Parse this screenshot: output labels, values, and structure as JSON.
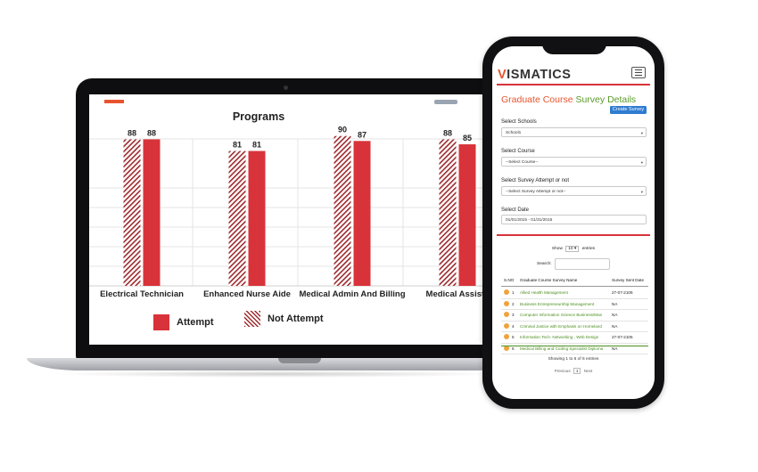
{
  "laptop": {
    "chart_data": {
      "type": "bar",
      "title": "Programs",
      "categories": [
        "Electrical Technician",
        "Enhanced Nurse Aide",
        "Medical Admin And Billing",
        "Medical Assista"
      ],
      "series": [
        {
          "name": "Not Attempt",
          "values": [
            88,
            81,
            90,
            88
          ],
          "pattern": "hatch",
          "color": "#9e2a2e"
        },
        {
          "name": "Attempt",
          "values": [
            88,
            81,
            87,
            85
          ],
          "pattern": "solid",
          "color": "#d8333a"
        }
      ],
      "ylim": [
        0,
        100
      ],
      "grid": true,
      "legend_position": "bottom"
    },
    "legend": {
      "attempt": "Attempt",
      "not_attempt": "Not Attempt"
    }
  },
  "phone": {
    "logo": {
      "accent": "V",
      "rest": "ISMATICS"
    },
    "page_title": {
      "part1": "Graduate Course",
      "part2": "Survey Details"
    },
    "create_button": "Create Survey",
    "filters": [
      {
        "label": "Select Schools",
        "value": "School1"
      },
      {
        "label": "Select Course",
        "value": "--Select Course--"
      },
      {
        "label": "Select Survey Attempt or not",
        "value": "--Select Survey Attempt or not--"
      },
      {
        "label": "Select Date",
        "value": "01/01/2015 - 01/31/2015"
      }
    ],
    "show": {
      "prefix": "Show",
      "count": "10",
      "suffix": "entries"
    },
    "search_label": "Search:",
    "table": {
      "headers": [
        "S.NO",
        "Graduate Course Survey Name",
        "Survey Sent Date"
      ],
      "rows": [
        {
          "no": "1",
          "name": "Allied Health Management",
          "date": "27-07-2106"
        },
        {
          "no": "2",
          "name": "Business Entrepreneurship Management",
          "date": "NA"
        },
        {
          "no": "3",
          "name": "Computer Information Science Business/Man",
          "date": "NA"
        },
        {
          "no": "4",
          "name": "Criminal Justice with Emphasis on Homeland",
          "date": "NA"
        },
        {
          "no": "5",
          "name": "Information Tech. Networking , Web Design",
          "date": "27-07-2106"
        },
        {
          "no": "6",
          "name": "Medical Billing and Coding Specialist Diploma",
          "date": "NA"
        }
      ]
    },
    "showing": "Showing 1 to 6 of 6 entries",
    "pager": {
      "prev": "Previous",
      "page": "1",
      "next": "Next"
    }
  },
  "colors": {
    "accent_orange": "#e8542f",
    "accent_green": "#5a9a2b",
    "bar_red": "#d8333a",
    "button_blue": "#2f7cd1"
  }
}
